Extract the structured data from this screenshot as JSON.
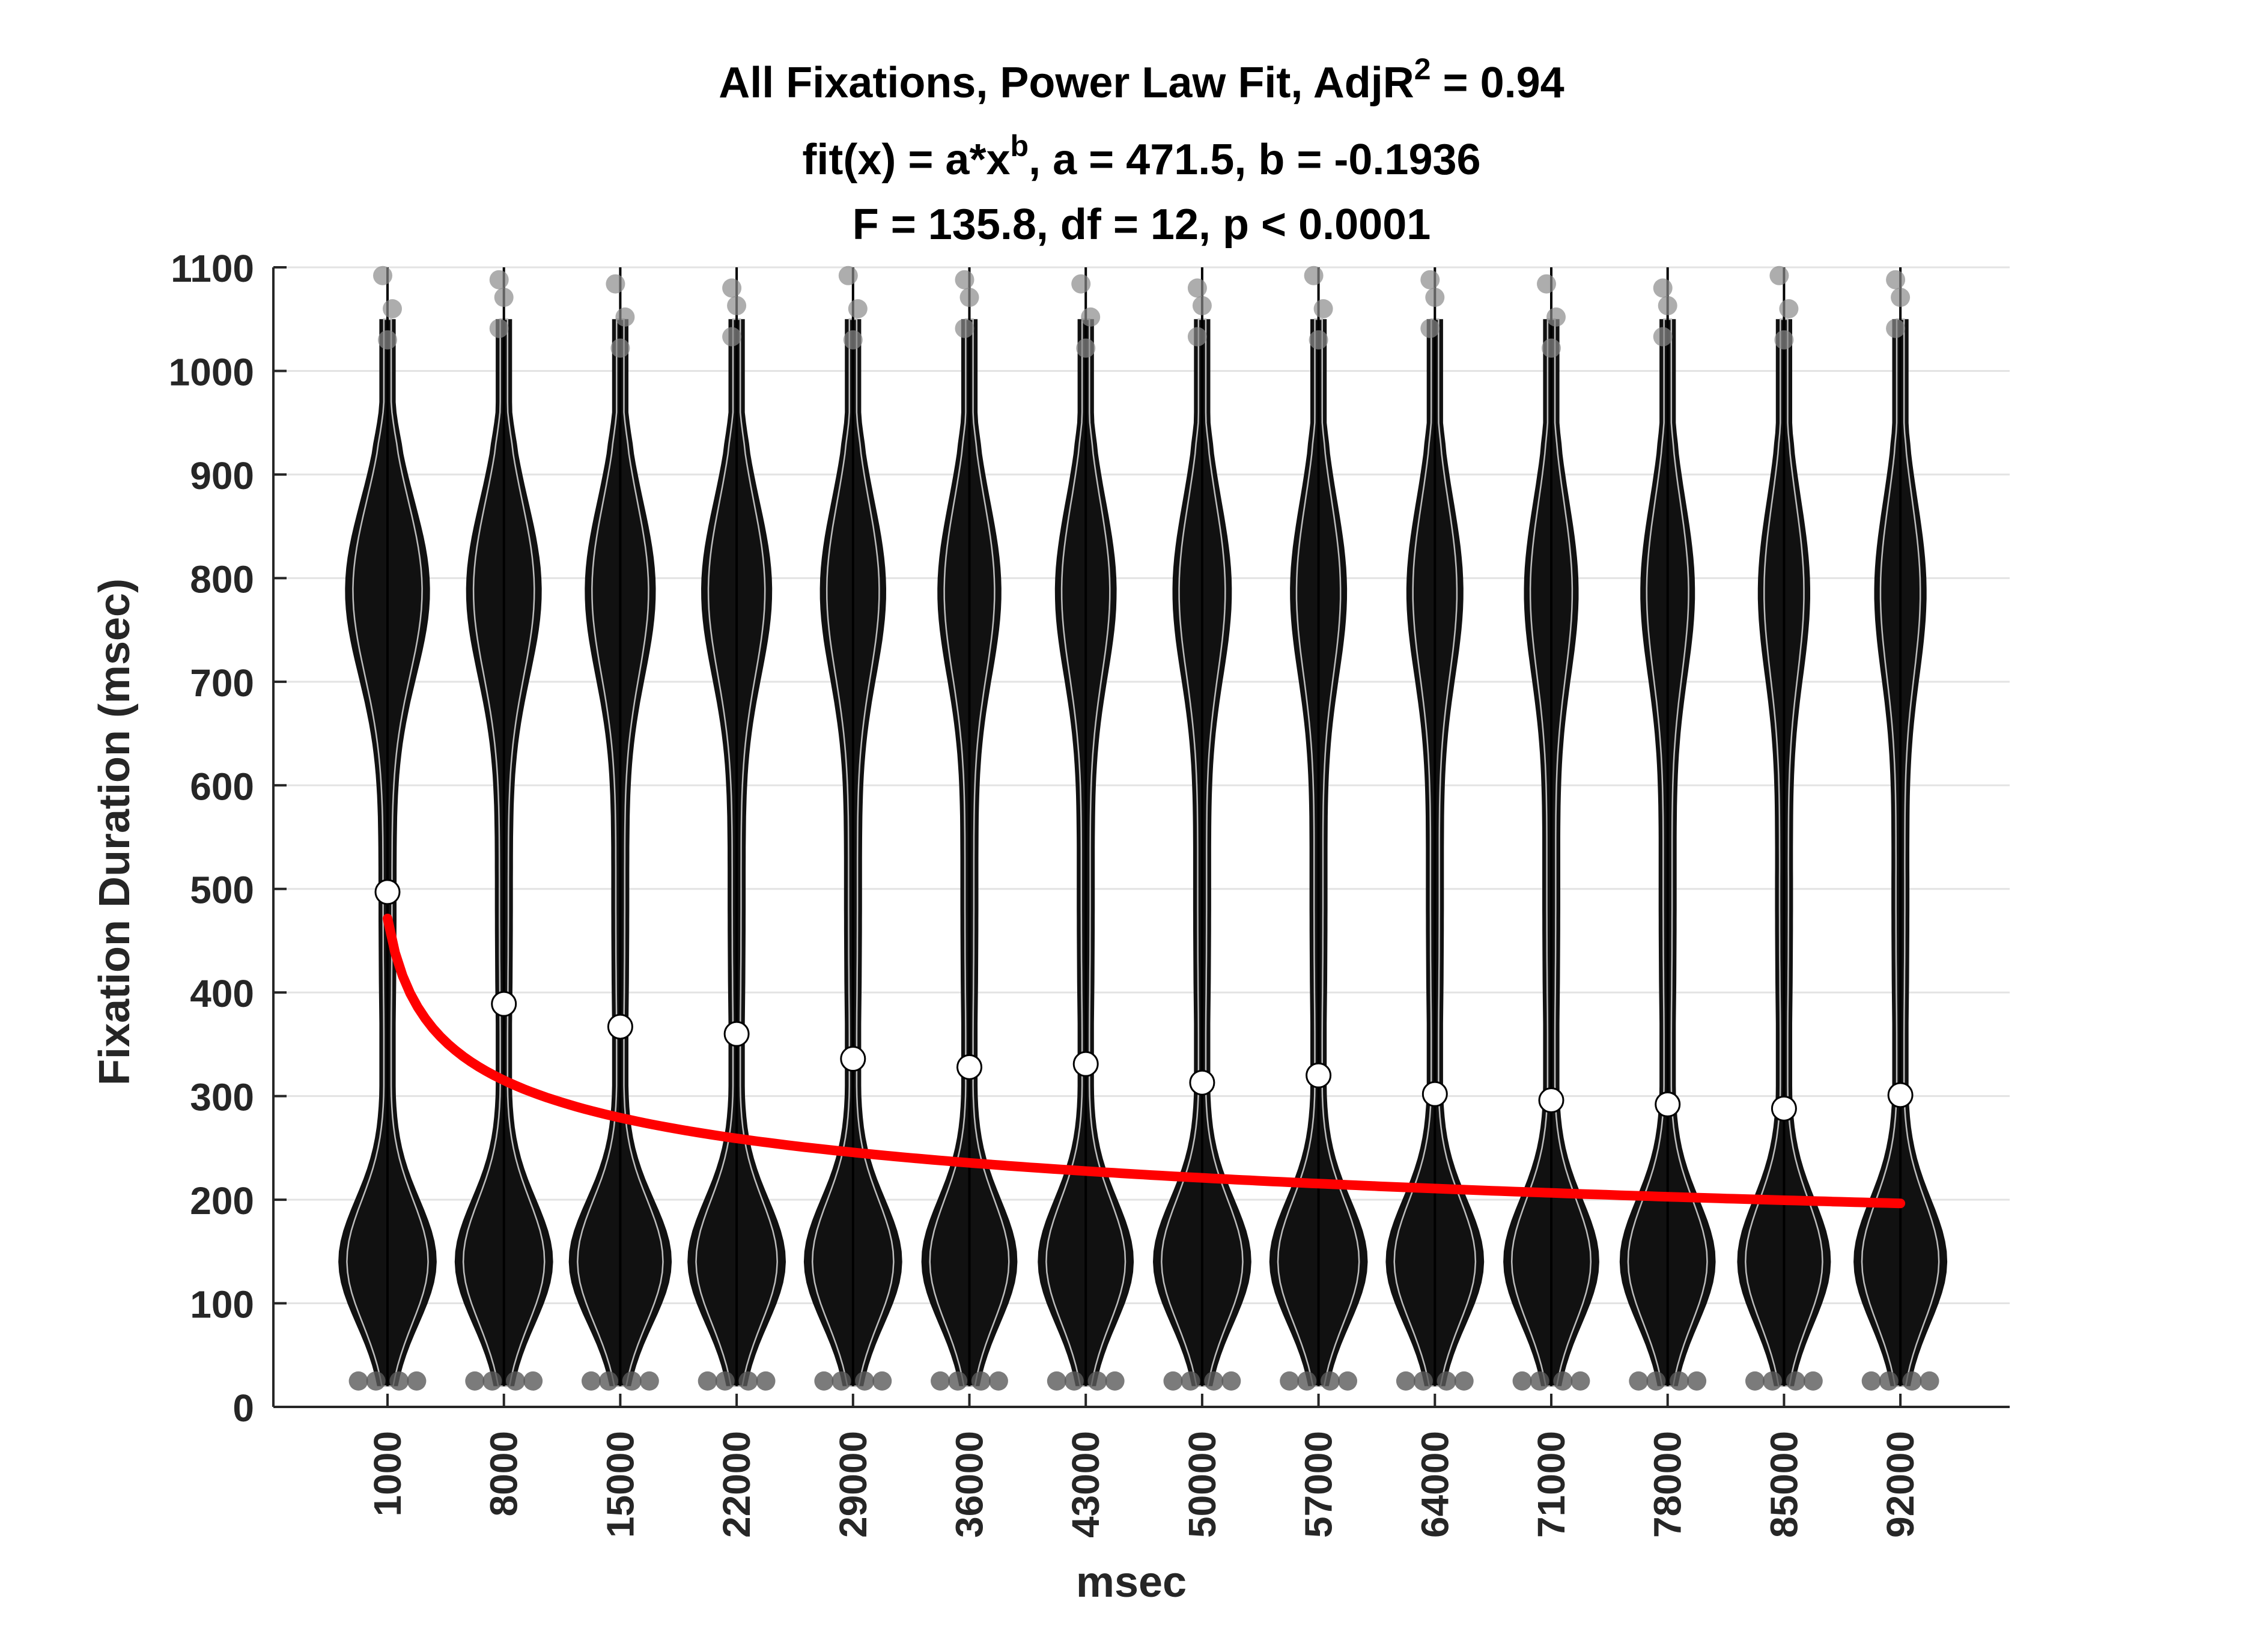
{
  "chart_data": {
    "type": "violin",
    "title_lines": [
      {
        "parts": [
          {
            "text": "All Fixations, Power Law Fit, AdjR"
          },
          {
            "text": "2",
            "sup": true
          },
          {
            "text": " = 0.94"
          }
        ]
      },
      {
        "parts": [
          {
            "text": "fit(x) = a*x"
          },
          {
            "text": "b",
            "sup": true
          },
          {
            "text": ", a = 471.5, b = -0.1936"
          }
        ]
      },
      {
        "parts": [
          {
            "text": "F = 135.8, df = 12, p < 0.0001"
          }
        ]
      }
    ],
    "xlabel": "msec",
    "ylabel": "Fixation Duration (msec)",
    "ylim": [
      0,
      1100
    ],
    "yticks": [
      0,
      100,
      200,
      300,
      400,
      500,
      600,
      700,
      800,
      900,
      1000,
      1100
    ],
    "categories": [
      "1000",
      "8000",
      "15000",
      "22000",
      "29000",
      "36000",
      "43000",
      "50000",
      "57000",
      "64000",
      "71000",
      "78000",
      "85000",
      "92000"
    ],
    "grid": true,
    "series": [
      {
        "role": "distribution",
        "color": "#111111",
        "outline_color": "#bdbdbd",
        "upper_mode_half_width": [
          0.32,
          0.28,
          0.26,
          0.26,
          0.24,
          0.23,
          0.22,
          0.21,
          0.2,
          0.2,
          0.19,
          0.19,
          0.18,
          0.18
        ],
        "lower_mode_half_width": [
          0.38,
          0.38,
          0.4,
          0.38,
          0.38,
          0.37,
          0.37,
          0.38,
          0.38,
          0.38,
          0.37,
          0.37,
          0.36,
          0.36
        ]
      },
      {
        "role": "median",
        "color": "#ffffff",
        "values": [
          497,
          389,
          367,
          360,
          336,
          328,
          331,
          313,
          320,
          302,
          296,
          292,
          288,
          301
        ]
      },
      {
        "role": "fit",
        "color": "#ff0000",
        "a": 471.5,
        "b": -0.1936
      }
    ]
  }
}
